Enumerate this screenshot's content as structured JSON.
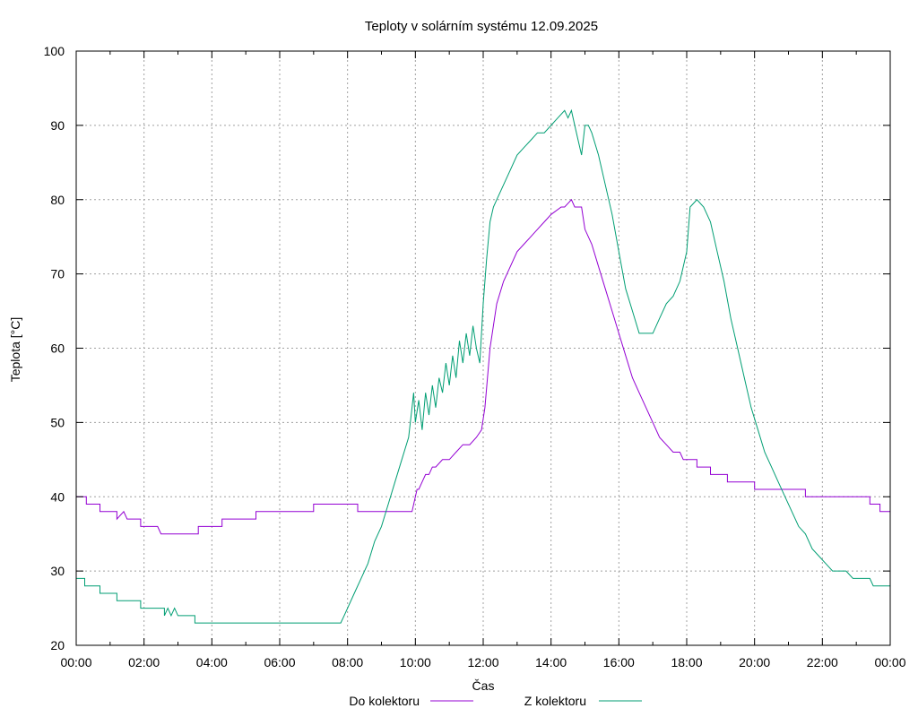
{
  "chart_data": {
    "type": "line",
    "title": "Teploty v solárním systému 12.09.2025",
    "xlabel": "Čas",
    "ylabel": "Teplota [°C]",
    "xlim": [
      0,
      24
    ],
    "ylim": [
      20,
      100
    ],
    "grid": true,
    "legend_position": "bottom-center",
    "y_ticks": [
      "20",
      "30",
      "40",
      "50",
      "60",
      "70",
      "80",
      "90",
      "100"
    ],
    "x_ticks": [
      "00:00",
      "02:00",
      "04:00",
      "06:00",
      "08:00",
      "10:00",
      "12:00",
      "14:00",
      "16:00",
      "18:00",
      "20:00",
      "22:00",
      "00:00"
    ],
    "series": [
      {
        "name": "Do kolektoru",
        "color": "#9400d3",
        "x": [
          0,
          0.3,
          0.3,
          0.7,
          0.7,
          1.2,
          1.2,
          1.4,
          1.5,
          1.6,
          1.9,
          1.9,
          2.4,
          2.5,
          2.6,
          2.6,
          3.0,
          3.0,
          3.6,
          3.6,
          4.3,
          4.3,
          5.3,
          5.3,
          5.6,
          5.6,
          6.0,
          6.8,
          7.0,
          7.0,
          7.5,
          7.5,
          8.3,
          8.3,
          9.5,
          9.9,
          10.0,
          10.05,
          10.1,
          10.2,
          10.3,
          10.4,
          10.5,
          10.6,
          10.8,
          11.0,
          11.2,
          11.4,
          11.6,
          11.8,
          11.95,
          12.05,
          12.2,
          12.4,
          12.6,
          12.8,
          13.0,
          13.2,
          13.4,
          13.6,
          13.8,
          14.0,
          14.3,
          14.4,
          14.6,
          14.7,
          14.9,
          15.0,
          15.2,
          15.4,
          15.6,
          15.8,
          16.0,
          16.2,
          16.4,
          16.6,
          16.8,
          17.0,
          17.2,
          17.4,
          17.6,
          17.8,
          17.9,
          18.3,
          18.3,
          18.7,
          18.7,
          19.2,
          19.2,
          20.0,
          20.0,
          20.6,
          20.6,
          21.5,
          21.5,
          22.0,
          22.0,
          23.4,
          23.4,
          23.7,
          23.7,
          24.0
        ],
        "values": [
          40,
          40,
          39,
          39,
          38,
          38,
          37,
          38,
          37,
          37,
          37,
          36,
          36,
          35,
          35,
          35,
          35,
          35,
          35,
          36,
          36,
          37,
          37,
          38,
          38,
          38,
          38,
          38,
          38,
          39,
          39,
          39,
          39,
          38,
          38,
          38,
          40,
          41,
          41,
          42,
          43,
          43,
          44,
          44,
          45,
          45,
          46,
          47,
          47,
          48,
          49,
          52,
          60,
          66,
          69,
          71,
          73,
          74,
          75,
          76,
          77,
          78,
          79,
          79,
          80,
          79,
          79,
          76,
          74,
          71,
          68,
          65,
          62,
          59,
          56,
          54,
          52,
          50,
          48,
          47,
          46,
          46,
          45,
          45,
          44,
          44,
          43,
          43,
          42,
          42,
          41,
          41,
          41,
          41,
          40,
          40,
          40,
          40,
          39,
          39,
          38,
          38
        ]
      },
      {
        "name": "Z kolektoru",
        "color": "#009e73",
        "x": [
          0,
          0.25,
          0.25,
          0.7,
          0.7,
          1.2,
          1.2,
          1.9,
          1.9,
          2.6,
          2.6,
          2.7,
          2.8,
          2.9,
          3.0,
          3.0,
          3.5,
          3.5,
          4.0,
          5.0,
          6.0,
          7.0,
          7.8,
          7.9,
          8.0,
          8.2,
          8.4,
          8.6,
          8.8,
          9.0,
          9.2,
          9.4,
          9.6,
          9.8,
          9.9,
          9.95,
          10.0,
          10.1,
          10.2,
          10.3,
          10.4,
          10.5,
          10.6,
          10.7,
          10.8,
          10.9,
          11.0,
          11.1,
          11.2,
          11.3,
          11.4,
          11.5,
          11.6,
          11.7,
          11.8,
          11.9,
          12.0,
          12.1,
          12.2,
          12.3,
          12.4,
          12.6,
          12.8,
          13.0,
          13.2,
          13.4,
          13.6,
          13.8,
          14.0,
          14.2,
          14.4,
          14.5,
          14.6,
          14.7,
          14.8,
          14.9,
          15.0,
          15.1,
          15.2,
          15.4,
          15.6,
          15.8,
          16.0,
          16.2,
          16.4,
          16.6,
          16.8,
          17.0,
          17.2,
          17.4,
          17.6,
          17.8,
          18.0,
          18.1,
          18.3,
          18.5,
          18.7,
          18.9,
          19.1,
          19.3,
          19.5,
          19.7,
          19.9,
          20.1,
          20.3,
          20.5,
          20.7,
          20.9,
          21.1,
          21.3,
          21.5,
          21.7,
          21.9,
          22.1,
          22.3,
          22.5,
          22.7,
          22.9,
          23.0,
          23.4,
          23.5,
          23.8,
          23.85,
          24.0
        ],
        "values": [
          29,
          29,
          28,
          28,
          27,
          27,
          26,
          26,
          25,
          25,
          24,
          25,
          24,
          25,
          24,
          24,
          24,
          23,
          23,
          23,
          23,
          23,
          23,
          24,
          25,
          27,
          29,
          31,
          34,
          36,
          39,
          42,
          45,
          48,
          52,
          54,
          50,
          53,
          49,
          54,
          51,
          55,
          52,
          56,
          54,
          58,
          55,
          59,
          56,
          61,
          58,
          62,
          59,
          63,
          60,
          58,
          66,
          72,
          77,
          79,
          80,
          82,
          84,
          86,
          87,
          88,
          89,
          89,
          90,
          91,
          92,
          91,
          92,
          90,
          88,
          86,
          90,
          90,
          89,
          86,
          82,
          78,
          73,
          68,
          65,
          62,
          62,
          62,
          64,
          66,
          67,
          69,
          73,
          79,
          80,
          79,
          77,
          73,
          69,
          64,
          60,
          56,
          52,
          49,
          46,
          44,
          42,
          40,
          38,
          36,
          35,
          33,
          32,
          31,
          30,
          30,
          30,
          29,
          29,
          29,
          28,
          28,
          28,
          28
        ]
      }
    ]
  }
}
